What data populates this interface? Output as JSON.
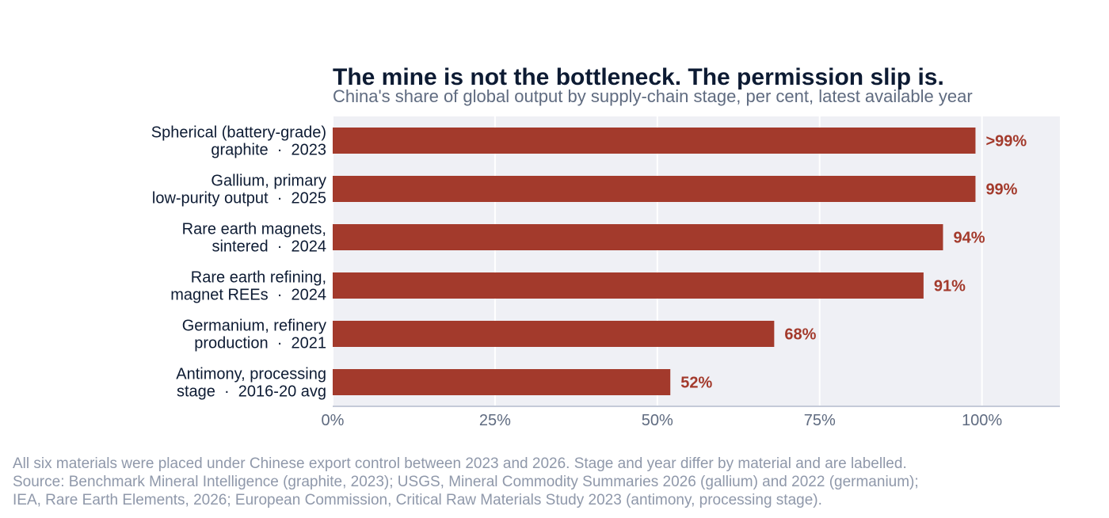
{
  "chart_data": {
    "type": "bar",
    "orientation": "horizontal",
    "title": "The mine is not the bottleneck. The permission slip is.",
    "subtitle": "China's share of global output by supply-chain stage, per cent, latest available year",
    "categories": [
      [
        "Spherical (battery-grade)",
        "graphite  ·  2023"
      ],
      [
        "Gallium, primary",
        "low-purity output  ·  2025"
      ],
      [
        "Rare earth magnets,",
        "sintered  ·  2024"
      ],
      [
        "Rare earth refining,",
        "magnet REEs  ·  2024"
      ],
      [
        "Germanium, refinery",
        "production  ·  2021"
      ],
      [
        "Antimony, processing",
        "stage  ·  2016-20 avg"
      ]
    ],
    "values": [
      99,
      99,
      94,
      91,
      68,
      52
    ],
    "data_labels": [
      ">99%",
      "99%",
      "94%",
      "91%",
      "68%",
      "52%"
    ],
    "xlim": [
      0,
      112
    ],
    "ticks": [
      0,
      25,
      50,
      75,
      100
    ],
    "tick_labels": [
      "0%",
      "25%",
      "50%",
      "75%",
      "100%"
    ],
    "grid": true,
    "colors": {
      "bar": "#a33a2c",
      "label": "#a33a2c",
      "plot_bg": "#eff0f5",
      "grid": "#ffffff",
      "axis": "#c4cad8"
    }
  },
  "notes": [
    "All six materials were placed under Chinese export control between 2023 and 2026. Stage and year differ by material and are labelled.",
    "Source: Benchmark Mineral Intelligence (graphite, 2023); USGS, Mineral Commodity Summaries 2026 (gallium) and 2022 (germanium);",
    "IEA, Rare Earth Elements, 2026; European Commission, Critical Raw Materials Study 2023 (antimony, processing stage)."
  ]
}
